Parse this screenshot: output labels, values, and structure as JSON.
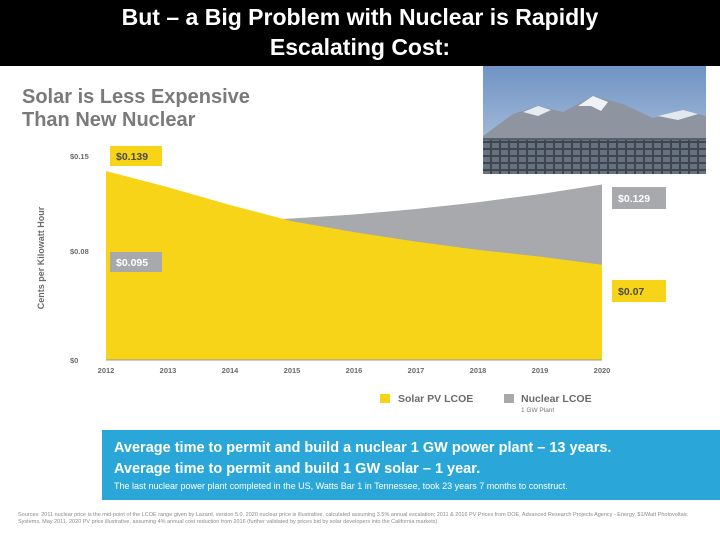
{
  "slide": {
    "title_line1": "But – a Big Problem with Nuclear is Rapidly",
    "title_line2": "Escalating Cost:",
    "subtitle_line1": "Solar is Less Expensive",
    "subtitle_line2": "Than New Nuclear"
  },
  "chart_data": {
    "type": "area",
    "x": [
      "2012",
      "2013",
      "2014",
      "2015",
      "2016",
      "2017",
      "2018",
      "2019",
      "2020"
    ],
    "series": [
      {
        "name": "Solar PV LCOE",
        "sublabel": "",
        "color": "#f7d417",
        "values": [
          0.139,
          0.127,
          0.114,
          0.102,
          0.094,
          0.087,
          0.081,
          0.076,
          0.07
        ],
        "start_label": "$0.139",
        "end_label": "$0.07"
      },
      {
        "name": "Nuclear LCOE",
        "sublabel": "1 GW Plant",
        "color": "#a7a9ac",
        "values": [
          0.095,
          0.099,
          0.102,
          0.104,
          0.107,
          0.111,
          0.116,
          0.122,
          0.129
        ],
        "start_label": "$0.095",
        "end_label": "$0.129"
      }
    ],
    "ylabel": "Cents per Kilowatt Hour",
    "y_ticks": [
      "$0",
      "$0.08",
      "$0.15"
    ],
    "ylim": [
      0,
      0.15
    ],
    "legend": "bottom",
    "grid": false
  },
  "info": {
    "line1": "Average time to permit and build a nuclear 1 GW power plant – 13 years.",
    "line2": "Average time to permit and build 1 GW solar – 1 year.",
    "line3": "The last nuclear power plant completed in the US, Watts Bar 1 in Tennessee, took 23 years 7 months to construct."
  },
  "sources": "Sources: 2011 nuclear price is the mid-point of the LCOE range given by Lazard, version 5.0. 2020 nuclear price is illustrative, calculated assuming 3.5% annual escalation; 2011 & 2016 PV Prices from DOE, Advanced Research Projects Agency - Energy, $1/Watt Photovoltaic Systems, May 2011. 2020 PV price illustrative, assuming 4% annual cost reduction from 2016 (further validated by prices bid by solar developers into the California markets)."
}
